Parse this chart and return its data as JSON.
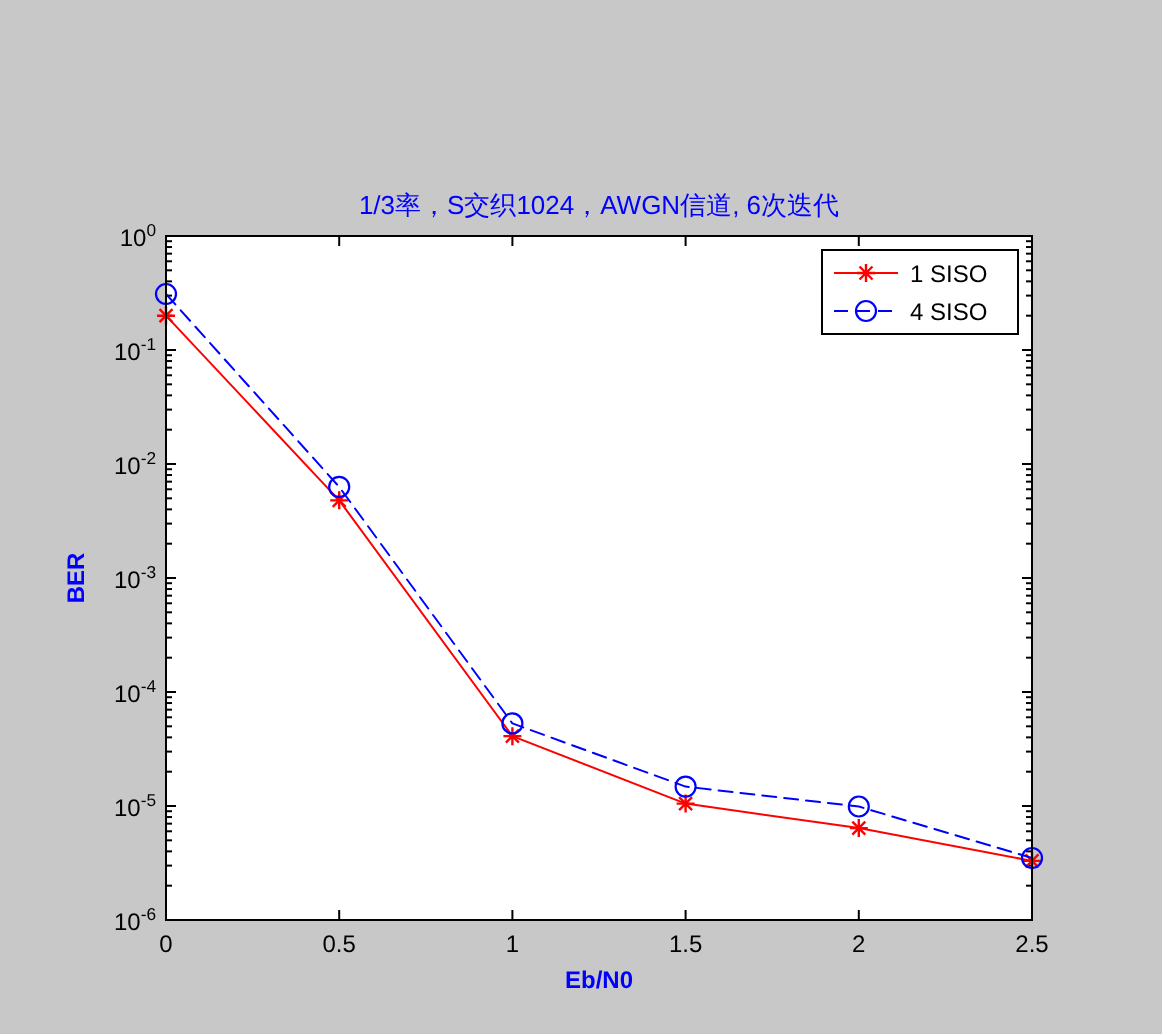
{
  "chart_data": {
    "type": "line",
    "title": "1/3率，S交织1024，AWGN信道, 6次迭代",
    "xlabel": "Eb/N0",
    "ylabel": "BER",
    "x": [
      0,
      0.5,
      1,
      1.5,
      2,
      2.5
    ],
    "series": [
      {
        "name": "1 SISO",
        "color": "#ff0000",
        "marker": "cross",
        "line_style": "solid",
        "values": [
          0.2,
          0.0048,
          4.1e-05,
          1.05e-05,
          6.4e-06,
          3.3e-06
        ]
      },
      {
        "name": "4 SISO",
        "color": "#0000ff",
        "marker": "circle",
        "line_style": "dashed",
        "values": [
          0.31,
          0.0063,
          5.3e-05,
          1.48e-05,
          9.9e-06,
          3.5e-06
        ]
      }
    ],
    "xlim": [
      0,
      2.5
    ],
    "xticks": [
      0,
      0.5,
      1,
      1.5,
      2,
      2.5
    ],
    "ylim": [
      1e-06,
      1
    ],
    "yticks": [
      {
        "value": 1e-06,
        "label": "10$^{-6}$"
      },
      {
        "value": 2e-06,
        "label": null
      },
      {
        "value": 3e-06,
        "label": null
      },
      {
        "value": 4e-06,
        "label": null
      },
      {
        "value": 5e-06,
        "label": null
      },
      {
        "value": 6e-06,
        "label": null
      },
      {
        "value": 7e-06,
        "label": null
      },
      {
        "value": 8e-06,
        "label": null
      },
      {
        "value": 9e-06,
        "label": null
      },
      {
        "value": 1e-05,
        "label": "10$^{-5}$"
      },
      {
        "value": 2e-05,
        "label": null
      },
      {
        "value": 3e-05,
        "label": null
      },
      {
        "value": 4e-05,
        "label": null
      },
      {
        "value": 5e-05,
        "label": null
      },
      {
        "value": 6e-05,
        "label": null
      },
      {
        "value": 7e-05,
        "label": null
      },
      {
        "value": 8e-05,
        "label": null
      },
      {
        "value": 9e-05,
        "label": null
      },
      {
        "value": 0.0001,
        "label": "10$^{-4}$"
      },
      {
        "value": 0.0002,
        "label": null
      },
      {
        "value": 0.0003,
        "label": null
      },
      {
        "value": 0.0004,
        "label": null
      },
      {
        "value": 0.0005,
        "label": null
      },
      {
        "value": 0.0006,
        "label": null
      },
      {
        "value": 0.0007,
        "label": null
      },
      {
        "value": 0.0008,
        "label": null
      },
      {
        "value": 0.0009,
        "label": null
      },
      {
        "value": 0.001,
        "label": "10$^{-3}$"
      },
      {
        "value": 0.002,
        "label": null
      },
      {
        "value": 0.003,
        "label": null
      },
      {
        "value": 0.004,
        "label": null
      },
      {
        "value": 0.005,
        "label": null
      },
      {
        "value": 0.006,
        "label": null
      },
      {
        "value": 0.007,
        "label": null
      },
      {
        "value": 0.008,
        "label": null
      },
      {
        "value": 0.009,
        "label": null
      },
      {
        "value": 0.01,
        "label": "10$^{-2}$"
      },
      {
        "value": 0.02,
        "label": null
      },
      {
        "value": 0.03,
        "label": null
      },
      {
        "value": 0.04,
        "label": null
      },
      {
        "value": 0.05,
        "label": null
      },
      {
        "value": 0.06,
        "label": null
      },
      {
        "value": 0.07,
        "label": null
      },
      {
        "value": 0.08,
        "label": null
      },
      {
        "value": 0.09,
        "label": null
      },
      {
        "value": 0.1,
        "label": "10$^{-1}$"
      },
      {
        "value": 0.2,
        "label": null
      },
      {
        "value": 0.3,
        "label": null
      },
      {
        "value": 0.4,
        "label": null
      },
      {
        "value": 0.5,
        "label": null
      },
      {
        "value": 0.6,
        "label": null
      },
      {
        "value": 0.7,
        "label": null
      },
      {
        "value": 0.8,
        "label": null
      },
      {
        "value": 0.9,
        "label": null
      },
      {
        "value": 1,
        "label": "10$^{0}$"
      }
    ],
    "log": true,
    "legend": "top right"
  }
}
